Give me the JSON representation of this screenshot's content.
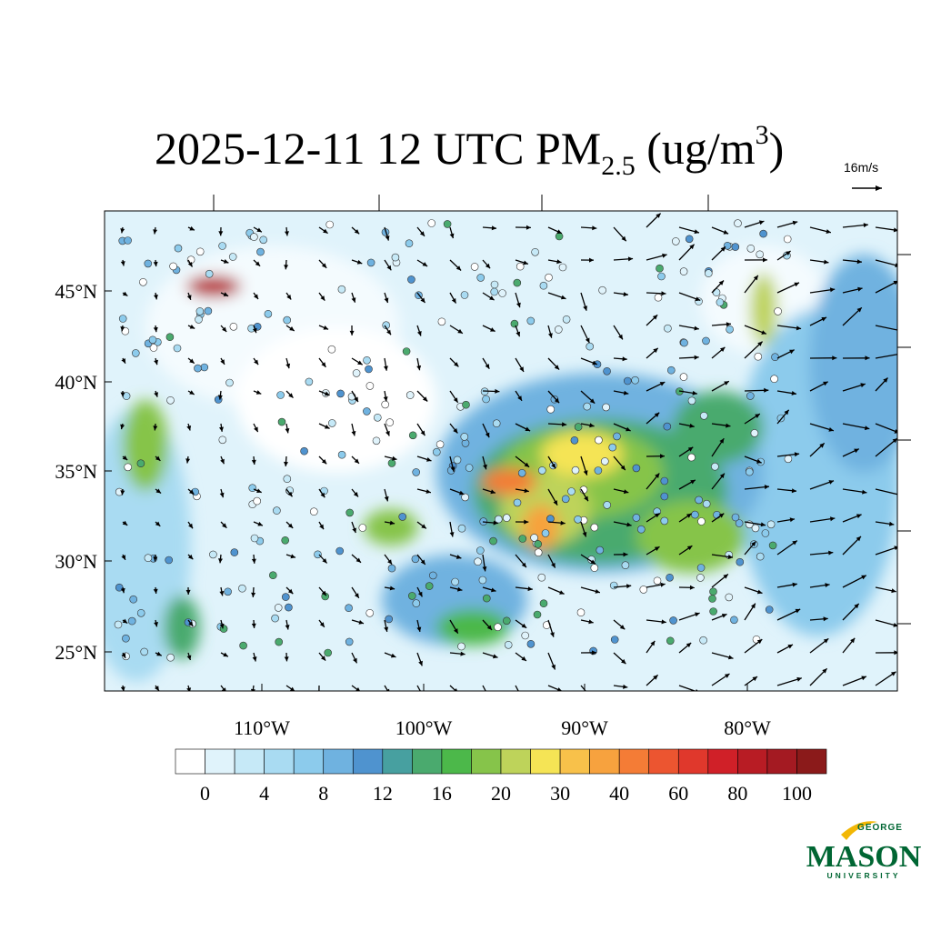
{
  "title": {
    "main": "2025-12-11 12 UTC PM",
    "sub": "2.5",
    "unit_open": " (ug/m",
    "sup": "3",
    "unit_close": ")"
  },
  "reference_vector": "16m/s",
  "map": {
    "lat_labels": [
      "45°N",
      "40°N",
      "35°N",
      "30°N",
      "25°N"
    ],
    "lon_labels": [
      "110°W",
      "100°W",
      "90°W",
      "80°W"
    ]
  },
  "colorbar": {
    "colors": [
      "#ffffff",
      "#e0f3fb",
      "#c6e9f7",
      "#a9dbf2",
      "#8ccbec",
      "#6fb2e0",
      "#4f93cf",
      "#47a0a0",
      "#4aaa6e",
      "#4cb84a",
      "#86c44a",
      "#bed35a",
      "#f5e455",
      "#f8c14a",
      "#f7a23e",
      "#f47c36",
      "#ec5530",
      "#e0382c",
      "#d02028",
      "#b81c24",
      "#a41a22",
      "#8b1a1a"
    ],
    "labels": [
      0,
      4,
      8,
      12,
      16,
      20,
      30,
      40,
      60,
      80,
      100
    ]
  },
  "logo": {
    "top": "GEORGE",
    "name": "MASON",
    "bottom": "UNIVERSITY"
  }
}
